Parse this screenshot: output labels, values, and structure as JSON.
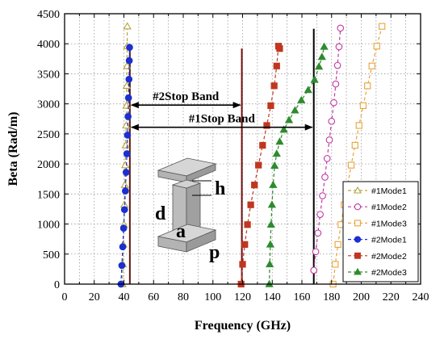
{
  "chart_data": {
    "type": "line",
    "xlabel": "Frequency (GHz)",
    "ylabel": "Beta (Rad/m)",
    "xlim": [
      0,
      240
    ],
    "ylim": [
      0,
      4500
    ],
    "xticks": [
      0,
      10,
      20,
      30,
      40,
      50,
      60,
      70,
      80,
      90,
      100,
      110,
      120,
      130,
      140,
      150,
      160,
      170,
      180,
      190,
      200,
      210,
      220,
      230,
      240
    ],
    "yticks": [
      0,
      500,
      1000,
      1500,
      2000,
      2500,
      3000,
      3500,
      4000,
      4500
    ],
    "grid": true,
    "legend_position": "bottom-right",
    "series": [
      {
        "name": "#1Mode1",
        "color": "#b5a43b",
        "marker": "triangle-open",
        "linestyle": "dash",
        "x": [
          39,
          39.3,
          39.6,
          40,
          40.3,
          40.6,
          40.9,
          41.2,
          41.5,
          41.7,
          41.9,
          42.1,
          42.2,
          42.3
        ],
        "y": [
          0,
          330,
          660,
          990,
          1320,
          1650,
          1980,
          2310,
          2640,
          2970,
          3300,
          3630,
          3960,
          4290
        ]
      },
      {
        "name": "#1Mode2",
        "color": "#c13aa1",
        "marker": "circle-open",
        "linestyle": "dash",
        "x": [
          168,
          169.3,
          170.8,
          172.3,
          173.9,
          175.5,
          177,
          178.5,
          180,
          181.5,
          182.8,
          184,
          185,
          186
        ],
        "y": [
          230,
          540,
          850,
          1160,
          1470,
          1780,
          2090,
          2400,
          2710,
          3020,
          3330,
          3640,
          3950,
          4260
        ]
      },
      {
        "name": "#1Mode3",
        "color": "#e8a33c",
        "marker": "square-open",
        "linestyle": "dash",
        "x": [
          181,
          182.5,
          184.3,
          186.3,
          188.5,
          190.8,
          193.2,
          195.8,
          198.5,
          201.3,
          204.2,
          207.2,
          210.5,
          214
        ],
        "y": [
          0,
          330,
          660,
          990,
          1320,
          1650,
          1980,
          2310,
          2640,
          2970,
          3300,
          3630,
          3960,
          4290
        ]
      },
      {
        "name": "#2Mode1",
        "color": "#1c2fd1",
        "marker": "circle-filled",
        "linestyle": "dash",
        "x": [
          38,
          38.6,
          39.2,
          39.8,
          40.4,
          41,
          41.5,
          42,
          42.4,
          42.8,
          43.1,
          43.4,
          43.6,
          43.8
        ],
        "y": [
          0,
          310,
          620,
          930,
          1240,
          1550,
          1860,
          2170,
          2480,
          2790,
          3100,
          3410,
          3720,
          3940
        ]
      },
      {
        "name": "#2Mode2",
        "color": "#c0371f",
        "marker": "square-filled",
        "linestyle": "dash",
        "x": [
          119,
          120,
          121.5,
          123.3,
          125.5,
          128,
          130.7,
          133.5,
          136.3,
          139,
          141.3,
          143,
          144.2,
          145
        ],
        "y": [
          0,
          330,
          660,
          990,
          1320,
          1650,
          1980,
          2310,
          2640,
          2970,
          3300,
          3630,
          3960,
          3920
        ]
      },
      {
        "name": "#2Mode3",
        "color": "#2e8b2e",
        "marker": "triangle-filled",
        "linestyle": "dash",
        "x": [
          138,
          138.3,
          138.7,
          139.2,
          139.8,
          140.6,
          141.6,
          143,
          145,
          147.8,
          151.3,
          155.3,
          159.6,
          164.2,
          168.5,
          171.5,
          173.5,
          175
        ],
        "y": [
          0,
          330,
          660,
          990,
          1320,
          1650,
          1970,
          2170,
          2370,
          2570,
          2730,
          2890,
          3060,
          3230,
          3400,
          3620,
          3780,
          3950
        ]
      }
    ],
    "vertical_lines": [
      {
        "x": 44,
        "y_top": 3950,
        "color": "#5a1a10"
      },
      {
        "x": 119.5,
        "y_top": 3920,
        "color": "#6e1010"
      },
      {
        "x": 168,
        "y_top": 4250,
        "color": "#000000"
      }
    ],
    "annotations": [
      {
        "text": "#2Stop Band",
        "from_x": 44,
        "to_x": 119.5,
        "y": 2980
      },
      {
        "text": "#1Stop Band",
        "from_x": 44,
        "to_x": 168,
        "y": 2610
      }
    ],
    "inset_labels": [
      "h",
      "d",
      "a",
      "p"
    ]
  }
}
